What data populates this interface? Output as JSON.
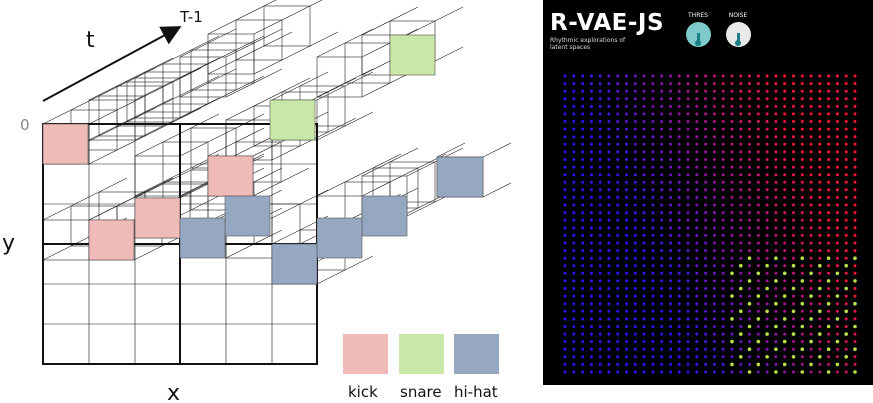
{
  "diagram": {
    "axis_time_label": "t",
    "axis_time_end": "T-1",
    "axis_origin": "0",
    "axis_y_label": "y",
    "axis_x_label": "x"
  },
  "legend": [
    {
      "key": "kick",
      "label": "kick",
      "color": "#efbab7"
    },
    {
      "key": "snare",
      "label": "snare",
      "color": "#c9e8a7"
    },
    {
      "key": "hihat",
      "label": "hi-hat",
      "color": "#96a7c2"
    }
  ],
  "app": {
    "title": "R-VAE-JS",
    "subtitle": "Rhythmic explorations of latent spaces",
    "knobs": [
      {
        "label": "THRES",
        "color": "#7ec9cb"
      },
      {
        "label": "NOISE",
        "color": "#e9e9e9"
      }
    ],
    "grid_colors": {
      "low": "#2020ff",
      "high": "#ff2020",
      "accent": "#b8e04a"
    }
  }
}
